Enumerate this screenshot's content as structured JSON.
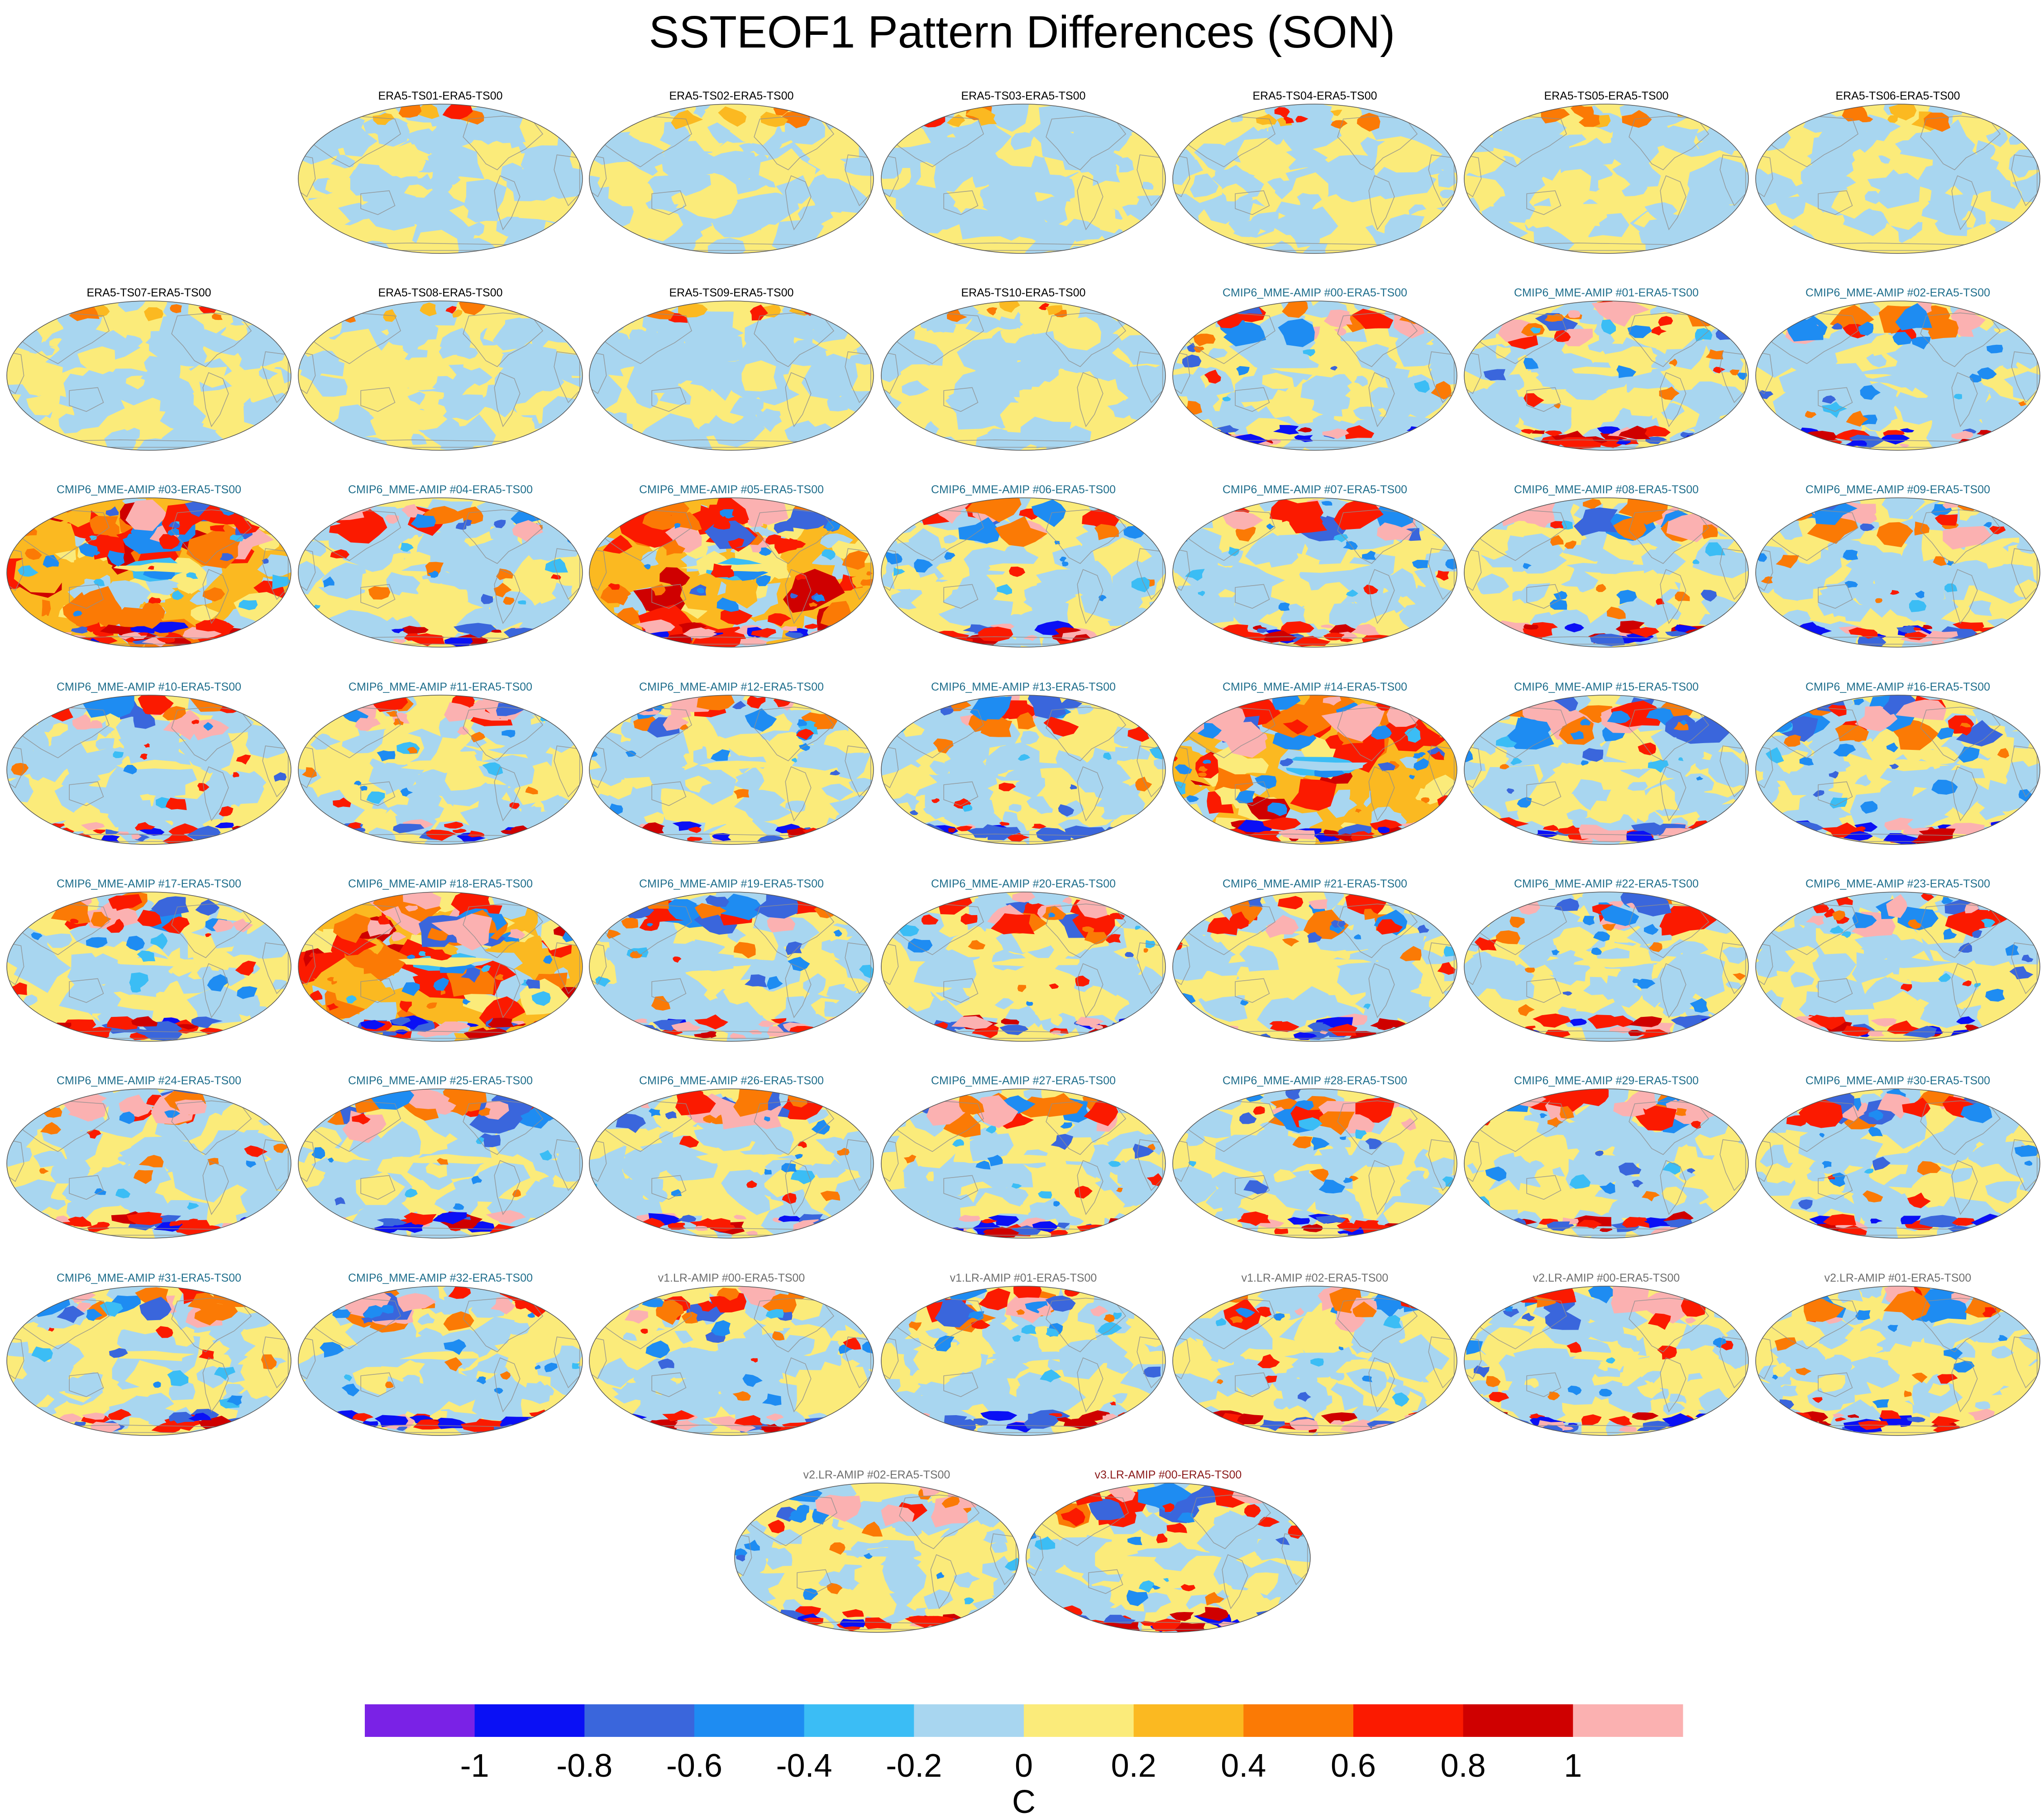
{
  "chart_data": {
    "type": "heatmap",
    "title": "SSTEOF1 Pattern Differences (SON)",
    "projection": "global map panels",
    "units": "C",
    "colorbar": {
      "levels": [
        -1,
        -0.8,
        -0.6,
        -0.4,
        -0.2,
        0,
        0.2,
        0.4,
        0.6,
        0.8,
        1
      ],
      "tick_labels": [
        "-1",
        "-0.8",
        "-0.6",
        "-0.4",
        "-0.2",
        "0",
        "0.2",
        "0.4",
        "0.6",
        "0.8",
        "1"
      ],
      "colors": [
        "#7a22e6",
        "#0a10f5",
        "#3a66dc",
        "#1e8cf2",
        "#3bbdf5",
        "#a8d6f0",
        "#fbeb7a",
        "#fbb921",
        "#fb7a05",
        "#fb1a00",
        "#cf0000",
        "#fbb1b1"
      ]
    },
    "panels": [
      {
        "title": "ERA5-TS01-ERA5-TS00",
        "group": "era5",
        "intensity": 0.1
      },
      {
        "title": "ERA5-TS02-ERA5-TS00",
        "group": "era5",
        "intensity": 0.15
      },
      {
        "title": "ERA5-TS03-ERA5-TS00",
        "group": "era5",
        "intensity": 0.15
      },
      {
        "title": "ERA5-TS04-ERA5-TS00",
        "group": "era5",
        "intensity": 0.2
      },
      {
        "title": "ERA5-TS05-ERA5-TS00",
        "group": "era5",
        "intensity": 0.2
      },
      {
        "title": "ERA5-TS06-ERA5-TS00",
        "group": "era5",
        "intensity": 0.18
      },
      {
        "title": "ERA5-TS07-ERA5-TS00",
        "group": "era5",
        "intensity": 0.15
      },
      {
        "title": "ERA5-TS08-ERA5-TS00",
        "group": "era5",
        "intensity": 0.15
      },
      {
        "title": "ERA5-TS09-ERA5-TS00",
        "group": "era5",
        "intensity": 0.15
      },
      {
        "title": "ERA5-TS10-ERA5-TS00",
        "group": "era5",
        "intensity": 0.15
      },
      {
        "title": "CMIP6_MME-AMIP  #00-ERA5-TS00",
        "group": "cmip6",
        "intensity": 0.6
      },
      {
        "title": "CMIP6_MME-AMIP  #01-ERA5-TS00",
        "group": "cmip6",
        "intensity": 0.65
      },
      {
        "title": "CMIP6_MME-AMIP  #02-ERA5-TS00",
        "group": "cmip6",
        "intensity": 0.65
      },
      {
        "title": "CMIP6_MME-AMIP  #03-ERA5-TS00",
        "group": "cmip6",
        "intensity": 1.0
      },
      {
        "title": "CMIP6_MME-AMIP  #04-ERA5-TS00",
        "group": "cmip6",
        "intensity": 0.65
      },
      {
        "title": "CMIP6_MME-AMIP  #05-ERA5-TS00",
        "group": "cmip6",
        "intensity": 1.0
      },
      {
        "title": "CMIP6_MME-AMIP  #06-ERA5-TS00",
        "group": "cmip6",
        "intensity": 0.65
      },
      {
        "title": "CMIP6_MME-AMIP  #07-ERA5-TS00",
        "group": "cmip6",
        "intensity": 0.65
      },
      {
        "title": "CMIP6_MME-AMIP  #08-ERA5-TS00",
        "group": "cmip6",
        "intensity": 0.65
      },
      {
        "title": "CMIP6_MME-AMIP  #09-ERA5-TS00",
        "group": "cmip6",
        "intensity": 0.7
      },
      {
        "title": "CMIP6_MME-AMIP  #10-ERA5-TS00",
        "group": "cmip6",
        "intensity": 0.6
      },
      {
        "title": "CMIP6_MME-AMIP  #11-ERA5-TS00",
        "group": "cmip6",
        "intensity": 0.65
      },
      {
        "title": "CMIP6_MME-AMIP  #12-ERA5-TS00",
        "group": "cmip6",
        "intensity": 0.6
      },
      {
        "title": "CMIP6_MME-AMIP  #13-ERA5-TS00",
        "group": "cmip6",
        "intensity": 0.6
      },
      {
        "title": "CMIP6_MME-AMIP  #14-ERA5-TS00",
        "group": "cmip6",
        "intensity": 1.0
      },
      {
        "title": "CMIP6_MME-AMIP  #15-ERA5-TS00",
        "group": "cmip6",
        "intensity": 0.7
      },
      {
        "title": "CMIP6_MME-AMIP  #16-ERA5-TS00",
        "group": "cmip6",
        "intensity": 0.75
      },
      {
        "title": "CMIP6_MME-AMIP  #17-ERA5-TS00",
        "group": "cmip6",
        "intensity": 0.6
      },
      {
        "title": "CMIP6_MME-AMIP  #18-ERA5-TS00",
        "group": "cmip6",
        "intensity": 1.0
      },
      {
        "title": "CMIP6_MME-AMIP  #19-ERA5-TS00",
        "group": "cmip6",
        "intensity": 0.65
      },
      {
        "title": "CMIP6_MME-AMIP  #20-ERA5-TS00",
        "group": "cmip6",
        "intensity": 0.65
      },
      {
        "title": "CMIP6_MME-AMIP  #21-ERA5-TS00",
        "group": "cmip6",
        "intensity": 0.65
      },
      {
        "title": "CMIP6_MME-AMIP  #22-ERA5-TS00",
        "group": "cmip6",
        "intensity": 0.65
      },
      {
        "title": "CMIP6_MME-AMIP  #23-ERA5-TS00",
        "group": "cmip6",
        "intensity": 0.65
      },
      {
        "title": "CMIP6_MME-AMIP  #24-ERA5-TS00",
        "group": "cmip6",
        "intensity": 0.6
      },
      {
        "title": "CMIP6_MME-AMIP  #25-ERA5-TS00",
        "group": "cmip6",
        "intensity": 0.65
      },
      {
        "title": "CMIP6_MME-AMIP  #26-ERA5-TS00",
        "group": "cmip6",
        "intensity": 0.65
      },
      {
        "title": "CMIP6_MME-AMIP  #27-ERA5-TS00",
        "group": "cmip6",
        "intensity": 0.65
      },
      {
        "title": "CMIP6_MME-AMIP  #28-ERA5-TS00",
        "group": "cmip6",
        "intensity": 0.65
      },
      {
        "title": "CMIP6_MME-AMIP  #29-ERA5-TS00",
        "group": "cmip6",
        "intensity": 0.65
      },
      {
        "title": "CMIP6_MME-AMIP  #30-ERA5-TS00",
        "group": "cmip6",
        "intensity": 0.65
      },
      {
        "title": "CMIP6_MME-AMIP  #31-ERA5-TS00",
        "group": "cmip6",
        "intensity": 0.6
      },
      {
        "title": "CMIP6_MME-AMIP  #32-ERA5-TS00",
        "group": "cmip6",
        "intensity": 0.7
      },
      {
        "title": "v1.LR-AMIP  #00-ERA5-TS00",
        "group": "v1",
        "intensity": 0.6
      },
      {
        "title": "v1.LR-AMIP  #01-ERA5-TS00",
        "group": "v1",
        "intensity": 0.6
      },
      {
        "title": "v1.LR-AMIP  #02-ERA5-TS00",
        "group": "v1",
        "intensity": 0.6
      },
      {
        "title": "v2.LR-AMIP  #00-ERA5-TS00",
        "group": "v2",
        "intensity": 0.65
      },
      {
        "title": "v2.LR-AMIP  #01-ERA5-TS00",
        "group": "v2",
        "intensity": 0.6
      },
      {
        "title": "v2.LR-AMIP  #02-ERA5-TS00",
        "group": "v2",
        "intensity": 0.6
      },
      {
        "title": "v3.LR-AMIP  #00-ERA5-TS00",
        "group": "v3",
        "intensity": 0.65
      }
    ],
    "group_title_colors": {
      "era5": "#000000",
      "cmip6": "#1f6e8c",
      "v1": "#6e6e6e",
      "v2": "#6e6e6e",
      "v3": "#8b1a1a"
    }
  }
}
